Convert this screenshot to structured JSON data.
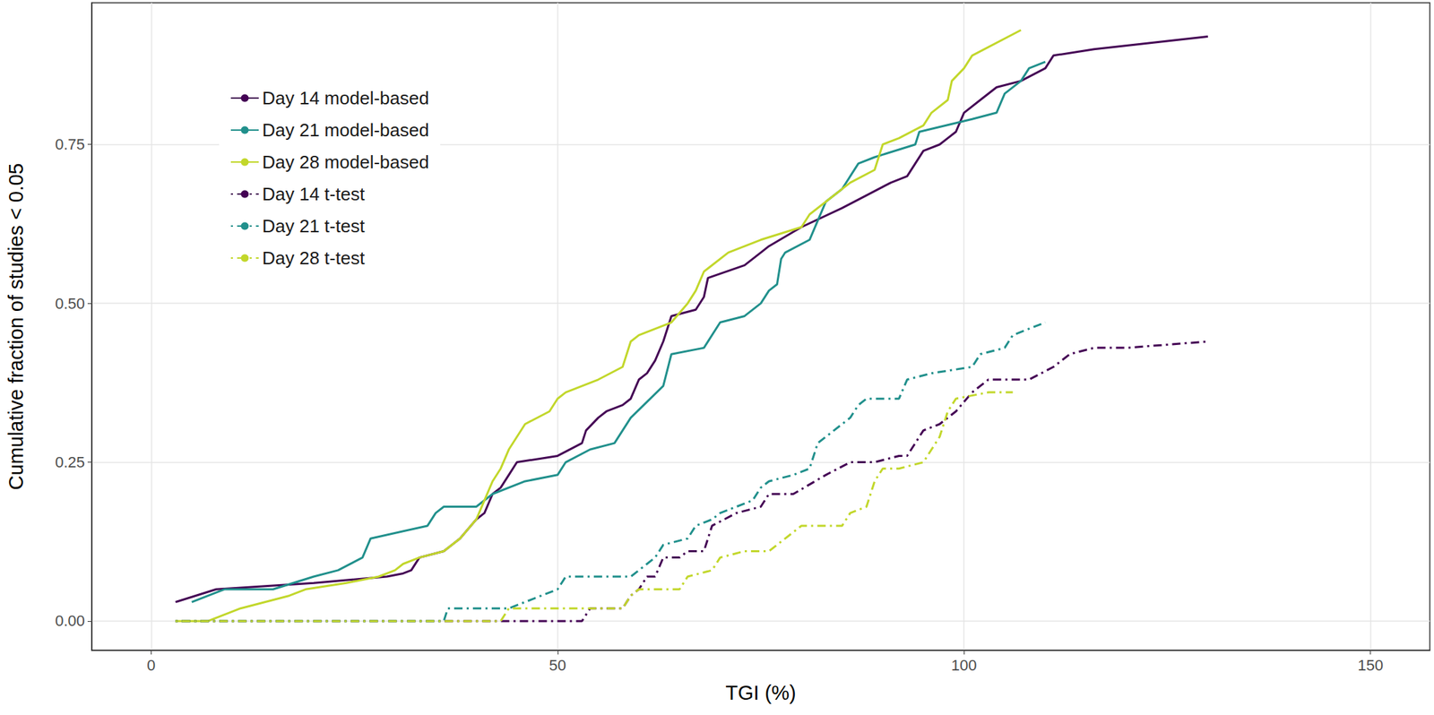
{
  "chart_data": {
    "type": "line",
    "x_label": "TGI (%)",
    "y_label": "Cumulative fraction of studies < 0.05",
    "xlim": [
      -7.3,
      157.3
    ],
    "ylim": [
      -0.046,
      0.973
    ],
    "xticks": [
      0,
      50,
      100,
      150
    ],
    "yticks": [
      {
        "value": 0,
        "label": "0.00"
      },
      {
        "value": 0.25,
        "label": "0.25"
      },
      {
        "value": 0.5,
        "label": "0.50"
      },
      {
        "value": 0.75,
        "label": "0.75"
      }
    ],
    "grid": true,
    "legend": "top-left",
    "series": [
      {
        "name": "Day 14 model-based",
        "color": "#440154",
        "line_style": "solid",
        "x": [
          3,
          8,
          20,
          29,
          31,
          32,
          33,
          36,
          37,
          38,
          40,
          41,
          42,
          43,
          44,
          45,
          50,
          53,
          53.5,
          55,
          56,
          58,
          59,
          60,
          61,
          62,
          63,
          64,
          67,
          68,
          68.5,
          73,
          75,
          76,
          80,
          85,
          88,
          91,
          93,
          94,
          95,
          97,
          98,
          99,
          100,
          102,
          104,
          107,
          110,
          111,
          116,
          130
        ],
        "values": [
          0.03,
          0.05,
          0.06,
          0.07,
          0.075,
          0.08,
          0.1,
          0.11,
          0.12,
          0.13,
          0.16,
          0.17,
          0.2,
          0.21,
          0.23,
          0.25,
          0.26,
          0.28,
          0.3,
          0.32,
          0.33,
          0.34,
          0.35,
          0.38,
          0.39,
          0.41,
          0.44,
          0.48,
          0.49,
          0.51,
          0.54,
          0.56,
          0.58,
          0.59,
          0.62,
          0.65,
          0.67,
          0.69,
          0.7,
          0.72,
          0.74,
          0.75,
          0.76,
          0.77,
          0.8,
          0.82,
          0.84,
          0.85,
          0.87,
          0.89,
          0.9,
          0.92
        ]
      },
      {
        "name": "Day 21 model-based",
        "color": "#21908C",
        "line_style": "solid",
        "x": [
          5,
          9,
          15,
          20,
          23,
          26,
          27,
          34,
          35,
          36,
          40,
          42,
          46,
          50,
          51,
          54,
          57,
          58,
          59,
          63,
          64,
          68,
          70,
          73,
          75,
          76,
          77,
          77.5,
          78,
          81,
          82,
          83,
          85,
          86,
          87,
          89,
          94,
          94.5,
          101,
          104,
          105,
          107,
          108,
          110
        ],
        "values": [
          0.03,
          0.05,
          0.05,
          0.07,
          0.08,
          0.1,
          0.13,
          0.15,
          0.17,
          0.18,
          0.18,
          0.2,
          0.22,
          0.23,
          0.25,
          0.27,
          0.28,
          0.3,
          0.32,
          0.37,
          0.42,
          0.43,
          0.47,
          0.48,
          0.5,
          0.52,
          0.53,
          0.57,
          0.58,
          0.6,
          0.63,
          0.66,
          0.68,
          0.7,
          0.72,
          0.73,
          0.75,
          0.77,
          0.79,
          0.8,
          0.83,
          0.85,
          0.87,
          0.88
        ]
      },
      {
        "name": "Day 28 model-based",
        "color": "#C2D72B",
        "line_style": "solid",
        "x": [
          3,
          7,
          11,
          17,
          19,
          24,
          28,
          30,
          31,
          33,
          36,
          38,
          40,
          41,
          42,
          43,
          44,
          45,
          46,
          49,
          50,
          51,
          55,
          58,
          59,
          60,
          64,
          66,
          67,
          68,
          71,
          75,
          80,
          81,
          86,
          89,
          90,
          92,
          95,
          96,
          98,
          98.5,
          100,
          101,
          107
        ],
        "values": [
          0.0,
          0.0,
          0.02,
          0.04,
          0.05,
          0.06,
          0.07,
          0.08,
          0.09,
          0.1,
          0.11,
          0.13,
          0.16,
          0.19,
          0.22,
          0.24,
          0.27,
          0.29,
          0.31,
          0.33,
          0.35,
          0.36,
          0.38,
          0.4,
          0.44,
          0.45,
          0.47,
          0.5,
          0.52,
          0.55,
          0.58,
          0.6,
          0.62,
          0.64,
          0.69,
          0.71,
          0.75,
          0.76,
          0.78,
          0.8,
          0.82,
          0.85,
          0.87,
          0.89,
          0.93
        ]
      },
      {
        "name": "Day 14 t-test",
        "color": "#440154",
        "line_style": "dashdot",
        "x": [
          3,
          53,
          54,
          58,
          59,
          60,
          61,
          62,
          63,
          65,
          66,
          68,
          69,
          72,
          75,
          76,
          79,
          83,
          86,
          89,
          92,
          93,
          94,
          95,
          97,
          99,
          101,
          103,
          108,
          111,
          113,
          116,
          120,
          130
        ],
        "values": [
          0,
          0,
          0.02,
          0.02,
          0.04,
          0.05,
          0.07,
          0.07,
          0.1,
          0.1,
          0.11,
          0.11,
          0.15,
          0.17,
          0.18,
          0.2,
          0.2,
          0.23,
          0.25,
          0.25,
          0.26,
          0.26,
          0.28,
          0.3,
          0.31,
          0.33,
          0.36,
          0.38,
          0.38,
          0.4,
          0.42,
          0.43,
          0.43,
          0.44
        ]
      },
      {
        "name": "Day 21 t-test",
        "color": "#21908C",
        "line_style": "dashdot",
        "x": [
          3,
          36,
          36.5,
          44,
          46,
          48,
          50,
          51,
          59,
          61,
          62,
          63,
          66,
          67,
          69,
          70,
          74,
          75,
          76,
          79,
          81,
          82,
          84,
          86,
          87,
          88,
          92,
          93,
          96,
          101,
          102,
          105,
          106,
          108,
          110
        ],
        "values": [
          0,
          0,
          0.02,
          0.02,
          0.03,
          0.04,
          0.05,
          0.07,
          0.07,
          0.09,
          0.1,
          0.12,
          0.13,
          0.15,
          0.16,
          0.17,
          0.19,
          0.21,
          0.22,
          0.23,
          0.24,
          0.28,
          0.3,
          0.32,
          0.34,
          0.35,
          0.35,
          0.38,
          0.39,
          0.4,
          0.42,
          0.43,
          0.45,
          0.46,
          0.47
        ]
      },
      {
        "name": "Day 28 t-test",
        "color": "#C2D72B",
        "line_style": "dashdot",
        "x": [
          3,
          7,
          43,
          44,
          58,
          59,
          60,
          65,
          66,
          69,
          70,
          73,
          76,
          79,
          80,
          85,
          86,
          88,
          89,
          90,
          92,
          95,
          96,
          97,
          98,
          99,
          103,
          106
        ],
        "values": [
          0,
          0,
          0,
          0.02,
          0.02,
          0.04,
          0.05,
          0.05,
          0.07,
          0.08,
          0.1,
          0.11,
          0.11,
          0.14,
          0.15,
          0.15,
          0.17,
          0.18,
          0.22,
          0.24,
          0.24,
          0.25,
          0.27,
          0.29,
          0.33,
          0.35,
          0.36,
          0.36
        ]
      }
    ]
  }
}
